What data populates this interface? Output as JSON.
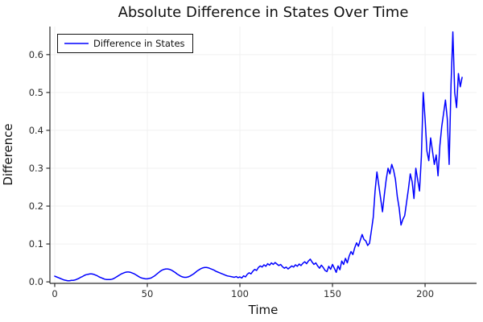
{
  "chart_data": {
    "type": "line",
    "title": "Absolute Difference in States Over Time",
    "xlabel": "Time",
    "ylabel": "Difference",
    "grid": true,
    "legend": {
      "position": "top-left",
      "entries": [
        {
          "label": "Difference in States",
          "color": "#0000ff"
        }
      ]
    },
    "axes": {
      "x_ticks": {
        "values": [
          0,
          50,
          100,
          150,
          200
        ],
        "labels": [
          "0",
          "50",
          "100",
          "150",
          "200"
        ]
      },
      "y_ticks": {
        "values": [
          0.0,
          0.1,
          0.2,
          0.3,
          0.4,
          0.5,
          0.6
        ],
        "labels": [
          "0.0",
          "0.1",
          "0.2",
          "0.3",
          "0.4",
          "0.5",
          "0.6"
        ]
      },
      "xlim": [
        -2.6,
        227.8
      ],
      "ylim": [
        -0.004,
        0.674
      ]
    },
    "style": {
      "line_color": "#0000ff",
      "line_width": 1.5,
      "grid_color": "#f0f0f0",
      "spine_color": "#2b2b2b",
      "background": "#ffffff"
    },
    "series": [
      {
        "name": "Difference in States",
        "x_start": 0,
        "x_step": 1,
        "y": [
          0.015,
          0.013,
          0.011,
          0.009,
          0.007,
          0.005,
          0.004,
          0.003,
          0.003,
          0.004,
          0.004,
          0.005,
          0.007,
          0.009,
          0.012,
          0.014,
          0.017,
          0.019,
          0.02,
          0.021,
          0.021,
          0.02,
          0.018,
          0.016,
          0.013,
          0.011,
          0.009,
          0.007,
          0.006,
          0.006,
          0.006,
          0.007,
          0.009,
          0.012,
          0.015,
          0.018,
          0.021,
          0.023,
          0.025,
          0.026,
          0.026,
          0.025,
          0.023,
          0.021,
          0.018,
          0.015,
          0.012,
          0.01,
          0.009,
          0.008,
          0.008,
          0.009,
          0.01,
          0.013,
          0.016,
          0.02,
          0.024,
          0.028,
          0.031,
          0.033,
          0.034,
          0.034,
          0.033,
          0.031,
          0.028,
          0.025,
          0.021,
          0.018,
          0.015,
          0.013,
          0.012,
          0.012,
          0.013,
          0.015,
          0.018,
          0.021,
          0.025,
          0.029,
          0.032,
          0.035,
          0.037,
          0.038,
          0.038,
          0.037,
          0.035,
          0.033,
          0.031,
          0.028,
          0.026,
          0.024,
          0.022,
          0.02,
          0.018,
          0.016,
          0.015,
          0.014,
          0.013,
          0.012,
          0.014,
          0.011,
          0.013,
          0.01,
          0.016,
          0.013,
          0.02,
          0.024,
          0.021,
          0.028,
          0.033,
          0.03,
          0.038,
          0.042,
          0.039,
          0.045,
          0.041,
          0.048,
          0.044,
          0.05,
          0.046,
          0.051,
          0.047,
          0.043,
          0.046,
          0.04,
          0.036,
          0.039,
          0.034,
          0.038,
          0.042,
          0.039,
          0.045,
          0.041,
          0.047,
          0.043,
          0.049,
          0.053,
          0.048,
          0.055,
          0.06,
          0.052,
          0.046,
          0.05,
          0.042,
          0.036,
          0.044,
          0.038,
          0.03,
          0.027,
          0.041,
          0.033,
          0.046,
          0.036,
          0.025,
          0.042,
          0.032,
          0.055,
          0.046,
          0.062,
          0.05,
          0.068,
          0.08,
          0.072,
          0.09,
          0.103,
          0.094,
          0.11,
          0.125,
          0.112,
          0.108,
          0.096,
          0.102,
          0.135,
          0.17,
          0.24,
          0.29,
          0.255,
          0.22,
          0.185,
          0.23,
          0.27,
          0.3,
          0.285,
          0.31,
          0.295,
          0.27,
          0.225,
          0.195,
          0.15,
          0.165,
          0.175,
          0.21,
          0.245,
          0.285,
          0.265,
          0.22,
          0.3,
          0.27,
          0.24,
          0.33,
          0.5,
          0.43,
          0.345,
          0.32,
          0.38,
          0.345,
          0.31,
          0.335,
          0.28,
          0.36,
          0.41,
          0.445,
          0.48,
          0.43,
          0.31,
          0.52,
          0.66,
          0.5,
          0.46,
          0.55,
          0.515,
          0.54
        ]
      }
    ]
  }
}
